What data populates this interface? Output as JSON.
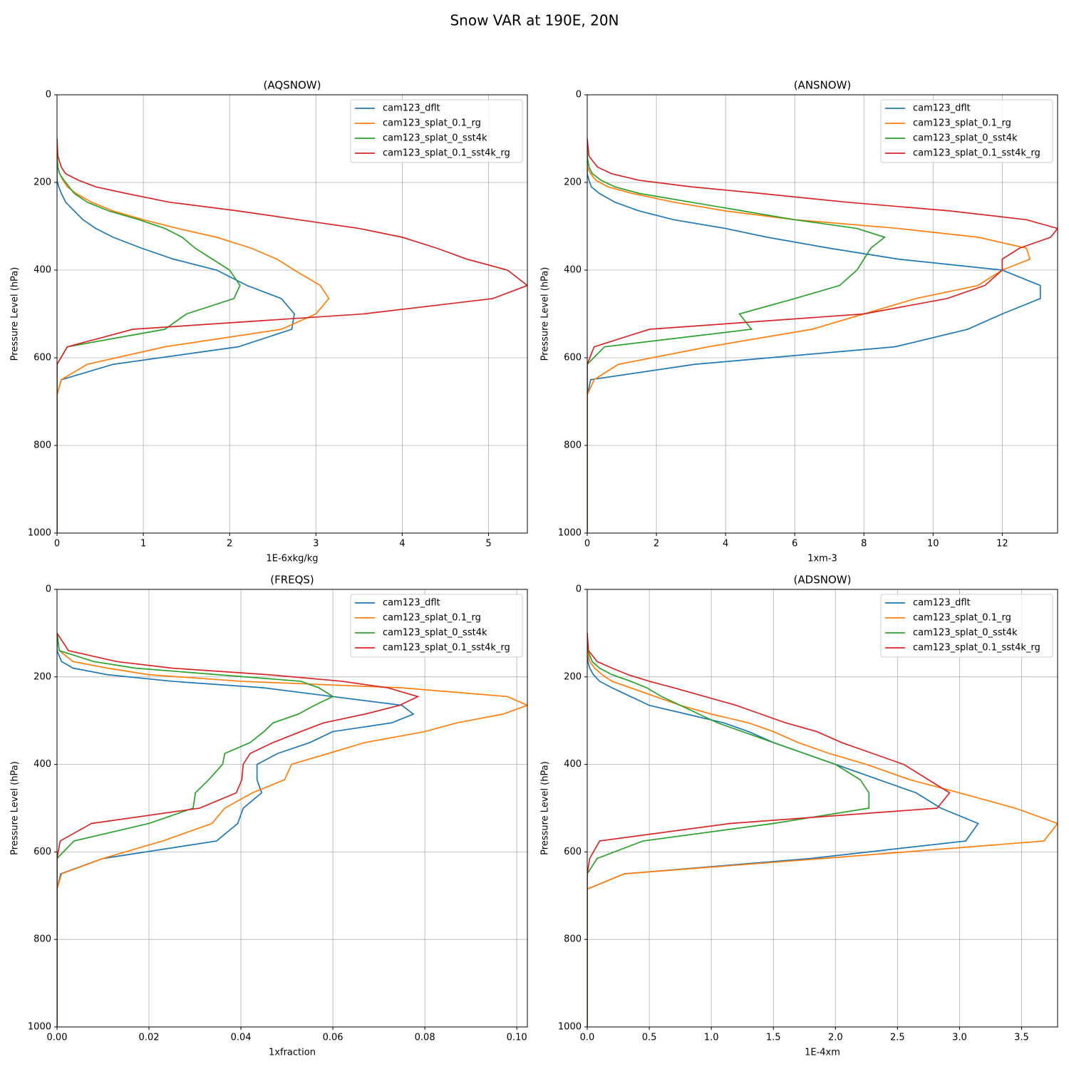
{
  "title": "Snow VAR at 190E, 20N",
  "chart_data": [
    {
      "type": "line",
      "title": "(AQSNOW)",
      "xlabel": "1E-6xkg/kg",
      "ylabel": "Pressure Level (hPa)",
      "y": [
        100,
        140,
        165,
        180,
        195,
        210,
        225,
        245,
        265,
        285,
        305,
        325,
        350,
        375,
        400,
        435,
        465,
        500,
        535,
        575,
        615,
        650,
        685,
        1000
      ],
      "xlim": [
        0,
        5.45
      ],
      "xticks": [
        0,
        1,
        2,
        3,
        4,
        5
      ],
      "ylim": [
        1000,
        0
      ],
      "yticks": [
        0,
        200,
        400,
        600,
        800,
        1000
      ],
      "grid": true,
      "legend": "upper right",
      "series": [
        {
          "name": "cam123_dflt",
          "color": "#1f77b4",
          "values": [
            0,
            0,
            0,
            0,
            0,
            0.02,
            0.05,
            0.1,
            0.2,
            0.3,
            0.45,
            0.65,
            0.98,
            1.35,
            1.85,
            2.2,
            2.6,
            2.75,
            2.72,
            2.1,
            0.65,
            0.05,
            0,
            0
          ]
        },
        {
          "name": "cam123_splat_0.1_rg",
          "color": "#ff7f0e",
          "values": [
            0,
            0,
            0.01,
            0.03,
            0.07,
            0.12,
            0.22,
            0.4,
            0.65,
            1.0,
            1.4,
            1.85,
            2.25,
            2.55,
            2.75,
            3.05,
            3.15,
            3.0,
            2.6,
            1.25,
            0.35,
            0.05,
            0,
            0
          ]
        },
        {
          "name": "cam123_splat_0_sst4k",
          "color": "#2ca02c",
          "values": [
            0,
            0,
            0.01,
            0.03,
            0.08,
            0.14,
            0.2,
            0.35,
            0.6,
            0.95,
            1.25,
            1.45,
            1.6,
            1.8,
            2.0,
            2.12,
            2.05,
            1.5,
            1.25,
            0.12,
            0,
            0,
            0,
            0
          ]
        },
        {
          "name": "cam123_splat_0.1_sst4k_rg",
          "color": "#d62728",
          "values": [
            0,
            0.01,
            0.05,
            0.1,
            0.25,
            0.45,
            0.8,
            1.3,
            2.1,
            2.8,
            3.5,
            4.0,
            4.4,
            4.75,
            5.22,
            5.45,
            5.05,
            3.55,
            0.88,
            0.12,
            0,
            0,
            0,
            0
          ]
        }
      ]
    },
    {
      "type": "line",
      "title": "(ANSNOW)",
      "xlabel": "1xm-3",
      "ylabel": "Pressure Level (hPa)",
      "y": [
        100,
        140,
        165,
        180,
        195,
        210,
        225,
        245,
        265,
        285,
        305,
        325,
        350,
        375,
        400,
        435,
        465,
        500,
        535,
        575,
        615,
        650,
        685,
        1000
      ],
      "xlim": [
        0,
        13.6
      ],
      "xticks": [
        0,
        2,
        4,
        6,
        8,
        10,
        12
      ],
      "ylim": [
        1000,
        0
      ],
      "yticks": [
        0,
        200,
        400,
        600,
        800,
        1000
      ],
      "grid": true,
      "legend": "upper right",
      "series": [
        {
          "name": "cam123_dflt",
          "color": "#1f77b4",
          "values": [
            0,
            0,
            0,
            0,
            0.05,
            0.12,
            0.35,
            0.8,
            1.5,
            2.5,
            4.0,
            5.2,
            7.0,
            9.0,
            12.0,
            13.1,
            13.1,
            12.0,
            11.0,
            8.9,
            3.1,
            0.1,
            0,
            0
          ]
        },
        {
          "name": "cam123_splat_0.1_rg",
          "color": "#ff7f0e",
          "values": [
            0,
            0,
            0,
            0.1,
            0.25,
            0.6,
            1.3,
            2.5,
            4.0,
            6.0,
            9.0,
            11.3,
            12.7,
            12.8,
            12.0,
            11.3,
            9.5,
            8.0,
            6.5,
            3.5,
            0.9,
            0.2,
            0,
            0
          ]
        },
        {
          "name": "cam123_splat_0_sst4k",
          "color": "#2ca02c",
          "values": [
            0,
            0,
            0.05,
            0.15,
            0.4,
            0.8,
            1.5,
            3.0,
            4.5,
            6.0,
            7.8,
            8.6,
            8.2,
            8.0,
            7.8,
            7.3,
            6.0,
            4.4,
            4.75,
            0.5,
            0,
            0,
            0,
            0
          ]
        },
        {
          "name": "cam123_splat_0.1_sst4k_rg",
          "color": "#d62728",
          "values": [
            0,
            0.05,
            0.3,
            0.7,
            1.5,
            3.0,
            5.0,
            7.5,
            10.5,
            12.7,
            13.6,
            13.4,
            12.5,
            12.0,
            12.0,
            11.5,
            10.4,
            8.0,
            1.8,
            0.2,
            0,
            0,
            0,
            0
          ]
        }
      ]
    },
    {
      "type": "line",
      "title": "(FREQS)",
      "xlabel": "1xfraction",
      "ylabel": "Pressure Level (hPa)",
      "y": [
        100,
        140,
        165,
        180,
        195,
        210,
        225,
        245,
        265,
        285,
        305,
        325,
        350,
        375,
        400,
        435,
        465,
        500,
        535,
        575,
        615,
        650,
        685,
        1000
      ],
      "xlim": [
        0,
        0.1023
      ],
      "xticks": [
        {
          "value": 0,
          "label": "0.00"
        },
        {
          "value": 0.02,
          "label": "0.02"
        },
        {
          "value": 0.04,
          "label": "0.04"
        },
        {
          "value": 0.06,
          "label": "0.06"
        },
        {
          "value": 0.08,
          "label": "0.08"
        },
        {
          "value": 0.1,
          "label": "0.10"
        }
      ],
      "ylim": [
        1000,
        0
      ],
      "yticks": [
        0,
        200,
        400,
        600,
        800,
        1000
      ],
      "grid": true,
      "legend": "upper right",
      "series": [
        {
          "name": "cam123_dflt",
          "color": "#1f77b4",
          "values": [
            0,
            0,
            0.001,
            0.0035,
            0.011,
            0.025,
            0.045,
            0.06,
            0.075,
            0.0775,
            0.0728,
            0.06,
            0.055,
            0.048,
            0.0435,
            0.0435,
            0.0445,
            0.0405,
            0.0393,
            0.0347,
            0.01,
            0.0008,
            0,
            0
          ]
        },
        {
          "name": "cam123_splat_0.1_rg",
          "color": "#ff7f0e",
          "values": [
            0,
            0.0005,
            0.0035,
            0.011,
            0.02,
            0.04,
            0.075,
            0.098,
            0.1023,
            0.097,
            0.087,
            0.08,
            0.067,
            0.059,
            0.051,
            0.0495,
            0.0425,
            0.0365,
            0.0337,
            0.023,
            0.01,
            0.001,
            0,
            0
          ]
        },
        {
          "name": "cam123_splat_0_sst4k",
          "color": "#2ca02c",
          "values": [
            0,
            0.0005,
            0.008,
            0.017,
            0.035,
            0.053,
            0.057,
            0.06,
            0.056,
            0.0525,
            0.047,
            0.045,
            0.042,
            0.0365,
            0.036,
            0.033,
            0.0301,
            0.0296,
            0.02,
            0.0037,
            0,
            0,
            0,
            0
          ]
        },
        {
          "name": "cam123_splat_0.1_sst4k_rg",
          "color": "#d62728",
          "values": [
            0,
            0.0025,
            0.013,
            0.025,
            0.046,
            0.062,
            0.072,
            0.0785,
            0.0745,
            0.067,
            0.058,
            0.053,
            0.047,
            0.042,
            0.0405,
            0.0402,
            0.039,
            0.031,
            0.0075,
            0.0007,
            0,
            0,
            0,
            0
          ]
        }
      ]
    },
    {
      "type": "line",
      "title": "(ADSNOW)",
      "xlabel": "1E-4xm",
      "ylabel": "Pressure Level (hPa)",
      "y": [
        100,
        140,
        165,
        180,
        195,
        210,
        225,
        245,
        265,
        285,
        305,
        325,
        350,
        375,
        400,
        435,
        465,
        500,
        535,
        575,
        615,
        650,
        685,
        1000
      ],
      "xlim": [
        0,
        3.79
      ],
      "xticks": [
        {
          "value": 0,
          "label": "0.0"
        },
        0.5,
        {
          "value": 1,
          "label": "1.0"
        },
        1.5,
        {
          "value": 2,
          "label": "2.0"
        },
        2.5,
        {
          "value": 3,
          "label": "3.0"
        },
        3.5
      ],
      "ylim": [
        1000,
        0
      ],
      "yticks": [
        0,
        200,
        400,
        600,
        800,
        1000
      ],
      "grid": true,
      "legend": "upper right",
      "series": [
        {
          "name": "cam123_dflt",
          "color": "#1f77b4",
          "values": [
            0,
            0,
            0.005,
            0.02,
            0.05,
            0.1,
            0.2,
            0.35,
            0.5,
            0.8,
            1.1,
            1.3,
            1.5,
            1.75,
            2.0,
            2.35,
            2.65,
            2.85,
            3.15,
            3.05,
            1.8,
            0.3,
            0,
            0
          ]
        },
        {
          "name": "cam123_splat_0.1_rg",
          "color": "#ff7f0e",
          "values": [
            0,
            0,
            0.02,
            0.06,
            0.12,
            0.2,
            0.35,
            0.55,
            0.75,
            1.0,
            1.3,
            1.5,
            1.7,
            1.95,
            2.25,
            2.6,
            3.0,
            3.45,
            3.79,
            3.68,
            1.9,
            0.3,
            0,
            0
          ]
        },
        {
          "name": "cam123_splat_0_sst4k",
          "color": "#2ca02c",
          "values": [
            0,
            0.005,
            0.04,
            0.1,
            0.2,
            0.35,
            0.48,
            0.6,
            0.75,
            0.9,
            1.05,
            1.25,
            1.5,
            1.75,
            2.0,
            2.2,
            2.27,
            2.27,
            1.5,
            0.45,
            0.08,
            0,
            0,
            0
          ]
        },
        {
          "name": "cam123_splat_0.1_sst4k_rg",
          "color": "#d62728",
          "values": [
            0,
            0.01,
            0.08,
            0.2,
            0.33,
            0.5,
            0.7,
            0.95,
            1.2,
            1.4,
            1.6,
            1.85,
            2.05,
            2.3,
            2.55,
            2.75,
            2.92,
            2.82,
            1.15,
            0.1,
            0.02,
            0,
            0,
            0
          ]
        }
      ]
    }
  ]
}
